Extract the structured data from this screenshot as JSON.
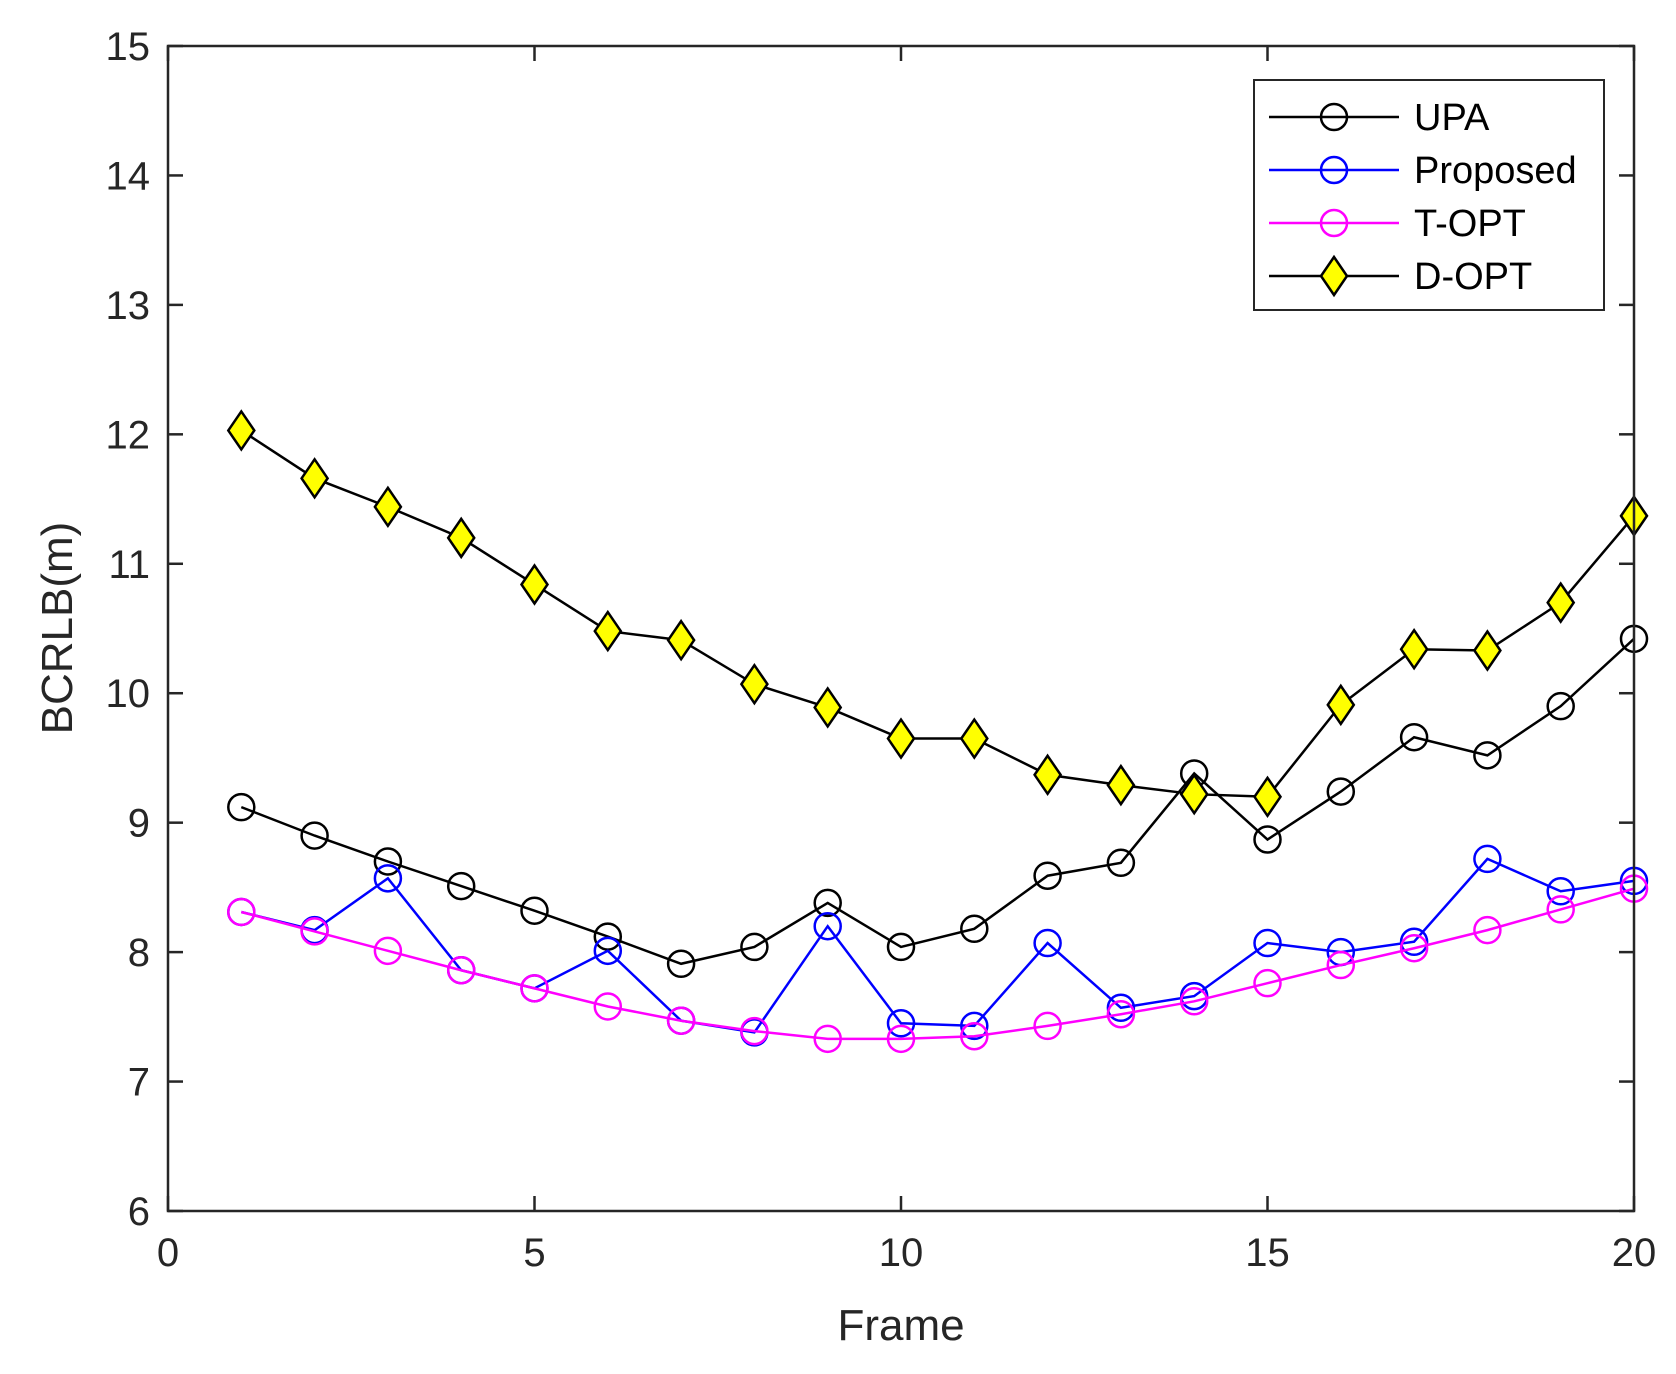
{
  "chart_data": {
    "type": "line",
    "title": "",
    "xlabel": "Frame",
    "ylabel": "BCRLB(m)",
    "xlim": [
      0,
      20
    ],
    "ylim": [
      6,
      15
    ],
    "xticks": [
      0,
      5,
      10,
      15,
      20
    ],
    "yticks": [
      6,
      7,
      8,
      9,
      10,
      11,
      12,
      13,
      14,
      15
    ],
    "grid": false,
    "legend_position": "top-right",
    "x": [
      1,
      2,
      3,
      4,
      5,
      6,
      7,
      8,
      9,
      10,
      11,
      12,
      13,
      14,
      15,
      16,
      17,
      18,
      19,
      20
    ],
    "series": [
      {
        "name": "UPA",
        "color": "#000000",
        "marker": "circle",
        "marker_fill": "none",
        "values": [
          9.12,
          8.9,
          8.7,
          8.51,
          8.32,
          8.12,
          7.91,
          8.04,
          8.38,
          8.04,
          8.18,
          8.59,
          8.69,
          9.38,
          8.87,
          9.24,
          9.66,
          9.52,
          9.9,
          10.42
        ]
      },
      {
        "name": "Proposed",
        "color": "#0000ff",
        "marker": "circle",
        "marker_fill": "none",
        "values": [
          8.31,
          8.17,
          8.57,
          7.86,
          7.72,
          8.01,
          7.47,
          7.38,
          8.2,
          7.45,
          7.43,
          8.07,
          7.57,
          7.66,
          8.07,
          8.0,
          8.08,
          8.72,
          8.47,
          8.55
        ]
      },
      {
        "name": "T-OPT",
        "color": "#ff00ff",
        "marker": "circle",
        "marker_fill": "none",
        "values": [
          8.31,
          8.16,
          8.01,
          7.86,
          7.72,
          7.58,
          7.47,
          7.39,
          7.33,
          7.33,
          7.35,
          7.43,
          7.52,
          7.62,
          7.76,
          7.9,
          8.03,
          8.17,
          8.33,
          8.49
        ]
      },
      {
        "name": "D-OPT",
        "color": "#000000",
        "marker": "diamond",
        "marker_fill": "#ffff00",
        "values": [
          12.03,
          11.66,
          11.44,
          11.2,
          10.84,
          10.48,
          10.41,
          10.07,
          9.89,
          9.65,
          9.65,
          9.37,
          9.29,
          9.22,
          9.2,
          9.91,
          10.34,
          10.33,
          10.7,
          11.37
        ]
      }
    ]
  }
}
